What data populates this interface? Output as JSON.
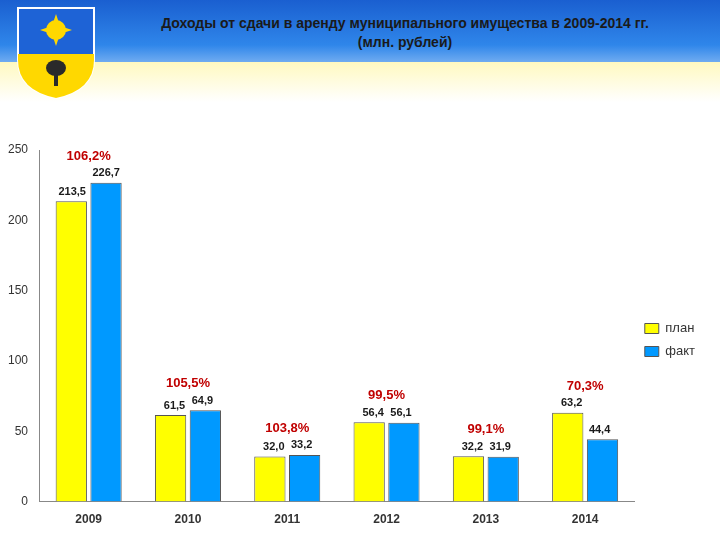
{
  "chart_data": {
    "type": "bar",
    "title": [
      "Доходы от сдачи в аренду муниципального имущества в 2009-2014 гг.",
      "(млн. рублей)"
    ],
    "categories": [
      "2009",
      "2010",
      "2011",
      "2012",
      "2013",
      "2014"
    ],
    "series": [
      {
        "name": "план",
        "color": "#ffff00",
        "values": [
          213.5,
          61.5,
          32.0,
          56.4,
          32.2,
          63.2
        ],
        "value_labels": [
          "213,5",
          "61,5",
          "32,0",
          "56,4",
          "32,2",
          "63,2"
        ]
      },
      {
        "name": "факт",
        "color": "#0099ff",
        "values": [
          226.7,
          64.9,
          33.2,
          56.1,
          31.9,
          44.4
        ],
        "value_labels": [
          "226,7",
          "64,9",
          "33,2",
          "56,1",
          "31,9",
          "44,4"
        ]
      }
    ],
    "annotations": [
      {
        "category": "2009",
        "text": "106,2%"
      },
      {
        "category": "2010",
        "text": "105,5%"
      },
      {
        "category": "2011",
        "text": "103,8%"
      },
      {
        "category": "2012",
        "text": "99,5%"
      },
      {
        "category": "2013",
        "text": "99,1%"
      },
      {
        "category": "2014",
        "text": "70,3%"
      }
    ],
    "ylim": [
      0,
      250
    ],
    "yticks": [
      0,
      50,
      100,
      150,
      200,
      250
    ],
    "grid": false,
    "legend": "right",
    "data_labels": true
  }
}
